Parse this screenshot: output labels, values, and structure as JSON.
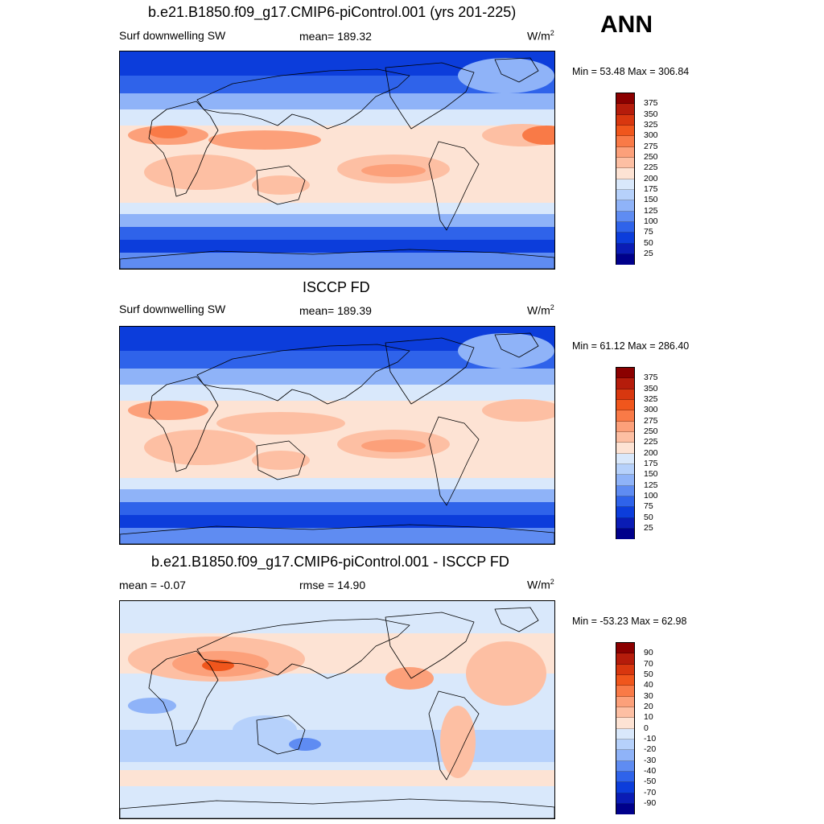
{
  "season": "ANN",
  "panels": [
    {
      "title": "b.e21.B1850.f09_g17.CMIP6-piControl.001 (yrs 201-225)",
      "left_label": "Surf downwelling SW",
      "stat_label": "mean= 189.32",
      "units_base": "W/m",
      "units_exp": "2",
      "minmax": "Min =  53.48 Max = 306.84",
      "levels": [
        "375",
        "350",
        "325",
        "300",
        "275",
        "250",
        "225",
        "200",
        "175",
        "150",
        "125",
        "100",
        "75",
        "50",
        "25"
      ],
      "colors": [
        "#8b0000",
        "#b51c0b",
        "#d8370f",
        "#f0561c",
        "#f97a47",
        "#fca07a",
        "#fdbfa3",
        "#fde3d4",
        "#d9e8fb",
        "#b6d1fb",
        "#8fb3f8",
        "#5f8cf2",
        "#2f63ea",
        "#0c3ddb",
        "#0a1cb5",
        "#00008b"
      ],
      "variant": "model"
    },
    {
      "title": "ISCCP FD",
      "left_label": "Surf downwelling SW",
      "stat_label": "mean= 189.39",
      "units_base": "W/m",
      "units_exp": "2",
      "minmax": "Min =  61.12 Max = 286.40",
      "levels": [
        "375",
        "350",
        "325",
        "300",
        "275",
        "250",
        "225",
        "200",
        "175",
        "150",
        "125",
        "100",
        "75",
        "50",
        "25"
      ],
      "colors": [
        "#8b0000",
        "#b51c0b",
        "#d8370f",
        "#f0561c",
        "#f97a47",
        "#fca07a",
        "#fdbfa3",
        "#fde3d4",
        "#d9e8fb",
        "#b6d1fb",
        "#8fb3f8",
        "#5f8cf2",
        "#2f63ea",
        "#0c3ddb",
        "#0a1cb5",
        "#00008b"
      ],
      "variant": "obs"
    },
    {
      "title": "b.e21.B1850.f09_g17.CMIP6-piControl.001 - ISCCP FD",
      "left_label": "mean =  -0.07",
      "stat_label": "rmse =  14.90",
      "units_base": "W/m",
      "units_exp": "2",
      "minmax": "Min = -53.23 Max =  62.98",
      "levels": [
        "90",
        "70",
        "50",
        "40",
        "30",
        "20",
        "10",
        "0",
        "-10",
        "-20",
        "-30",
        "-40",
        "-50",
        "-70",
        "-90"
      ],
      "colors": [
        "#8b0000",
        "#b51c0b",
        "#d8370f",
        "#f0561c",
        "#f97a47",
        "#fca07a",
        "#fdbfa3",
        "#fde3d4",
        "#d9e8fb",
        "#b6d1fb",
        "#8fb3f8",
        "#5f8cf2",
        "#2f63ea",
        "#0c3ddb",
        "#0a1cb5",
        "#00008b"
      ],
      "variant": "diff"
    }
  ],
  "chart_data": [
    {
      "type": "heatmap",
      "title": "b.e21.B1850.f09_g17.CMIP6-piControl.001 (yrs 201-225)",
      "variable": "Surf downwelling SW",
      "units": "W/m2",
      "mean": 189.32,
      "min": 53.48,
      "max": 306.84,
      "colorbar_levels": [
        25,
        50,
        75,
        100,
        125,
        150,
        175,
        200,
        225,
        250,
        275,
        300,
        325,
        350,
        375
      ]
    },
    {
      "type": "heatmap",
      "title": "ISCCP FD",
      "variable": "Surf downwelling SW",
      "units": "W/m2",
      "mean": 189.39,
      "min": 61.12,
      "max": 286.4,
      "colorbar_levels": [
        25,
        50,
        75,
        100,
        125,
        150,
        175,
        200,
        225,
        250,
        275,
        300,
        325,
        350,
        375
      ]
    },
    {
      "type": "heatmap",
      "title": "b.e21.B1850.f09_g17.CMIP6-piControl.001 - ISCCP FD",
      "units": "W/m2",
      "mean": -0.07,
      "rmse": 14.9,
      "min": -53.23,
      "max": 62.98,
      "colorbar_levels": [
        -90,
        -70,
        -50,
        -40,
        -30,
        -20,
        -10,
        0,
        10,
        20,
        30,
        40,
        50,
        70,
        90
      ]
    }
  ]
}
